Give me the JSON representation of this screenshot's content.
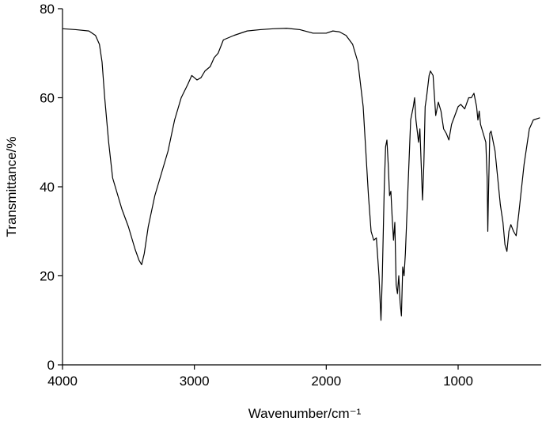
{
  "chart_data": {
    "type": "line",
    "xlabel": "Wavenumber/cm⁻¹",
    "ylabel": "Transmittance/%",
    "xlim": [
      4000,
      370
    ],
    "xticks": [
      4000,
      3000,
      2000,
      1000
    ],
    "ylim": [
      0,
      80
    ],
    "yticks": [
      0,
      20,
      40,
      60,
      80
    ],
    "grid": false,
    "series": [
      {
        "color": "#000000",
        "x": [
          4000,
          3900,
          3800,
          3750,
          3720,
          3700,
          3680,
          3650,
          3620,
          3580,
          3550,
          3500,
          3450,
          3420,
          3400,
          3380,
          3350,
          3300,
          3250,
          3200,
          3150,
          3100,
          3050,
          3020,
          3000,
          2980,
          2950,
          2920,
          2880,
          2850,
          2820,
          2780,
          2700,
          2600,
          2500,
          2400,
          2300,
          2200,
          2100,
          2000,
          1950,
          1900,
          1850,
          1800,
          1760,
          1720,
          1700,
          1680,
          1660,
          1640,
          1620,
          1600,
          1585,
          1575,
          1560,
          1550,
          1540,
          1530,
          1520,
          1510,
          1500,
          1490,
          1480,
          1470,
          1460,
          1450,
          1440,
          1430,
          1420,
          1410,
          1400,
          1380,
          1360,
          1340,
          1330,
          1320,
          1300,
          1290,
          1280,
          1270,
          1260,
          1250,
          1240,
          1220,
          1210,
          1190,
          1170,
          1150,
          1130,
          1110,
          1090,
          1070,
          1050,
          1000,
          980,
          950,
          920,
          900,
          880,
          860,
          850,
          840,
          830,
          810,
          790,
          780,
          775,
          770,
          760,
          750,
          720,
          700,
          680,
          660,
          645,
          630,
          615,
          600,
          580,
          560,
          540,
          500,
          460,
          430,
          380
        ],
        "values": [
          75.5,
          75.3,
          75,
          74,
          72,
          68,
          60,
          50,
          42,
          38,
          35,
          31,
          26,
          23.5,
          22.5,
          25,
          31,
          38,
          43,
          48,
          55,
          60,
          63,
          65,
          64.5,
          64,
          64.5,
          66,
          67,
          69,
          70,
          73,
          74,
          75,
          75.3,
          75.5,
          75.6,
          75.3,
          74.5,
          74.5,
          75,
          74.8,
          74,
          72,
          68,
          58,
          48,
          38,
          30,
          28,
          28.5,
          20,
          10,
          20,
          40,
          49,
          50.5,
          45,
          38,
          39,
          33,
          28,
          32,
          18,
          16,
          20,
          14,
          11,
          22,
          20,
          25,
          40,
          55,
          58,
          60,
          55,
          50,
          53,
          45,
          37,
          45,
          58,
          60,
          65,
          66,
          65,
          56,
          59,
          57,
          53,
          52,
          50.5,
          54,
          58,
          58.5,
          57.5,
          60,
          60,
          61,
          58,
          55,
          57,
          54,
          52,
          50,
          42,
          30,
          38,
          52,
          52.5,
          48,
          42,
          36,
          32,
          27,
          25.5,
          30,
          31.5,
          30,
          29,
          34,
          45,
          53,
          55,
          55.5
        ]
      }
    ]
  }
}
